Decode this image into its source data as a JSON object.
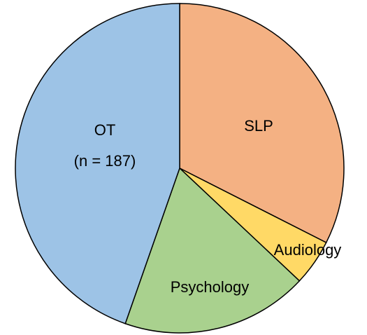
{
  "chart_data": {
    "type": "pie",
    "categories": [
      "SLP",
      "Audiology",
      "Psychology",
      "OT"
    ],
    "values": [
      136,
      19,
      77,
      187
    ],
    "value_labels": [
      null,
      null,
      null,
      "(n = 187)"
    ],
    "colors": [
      "#f4b183",
      "#ffd966",
      "#a9d18e",
      "#9dc3e6"
    ]
  }
}
